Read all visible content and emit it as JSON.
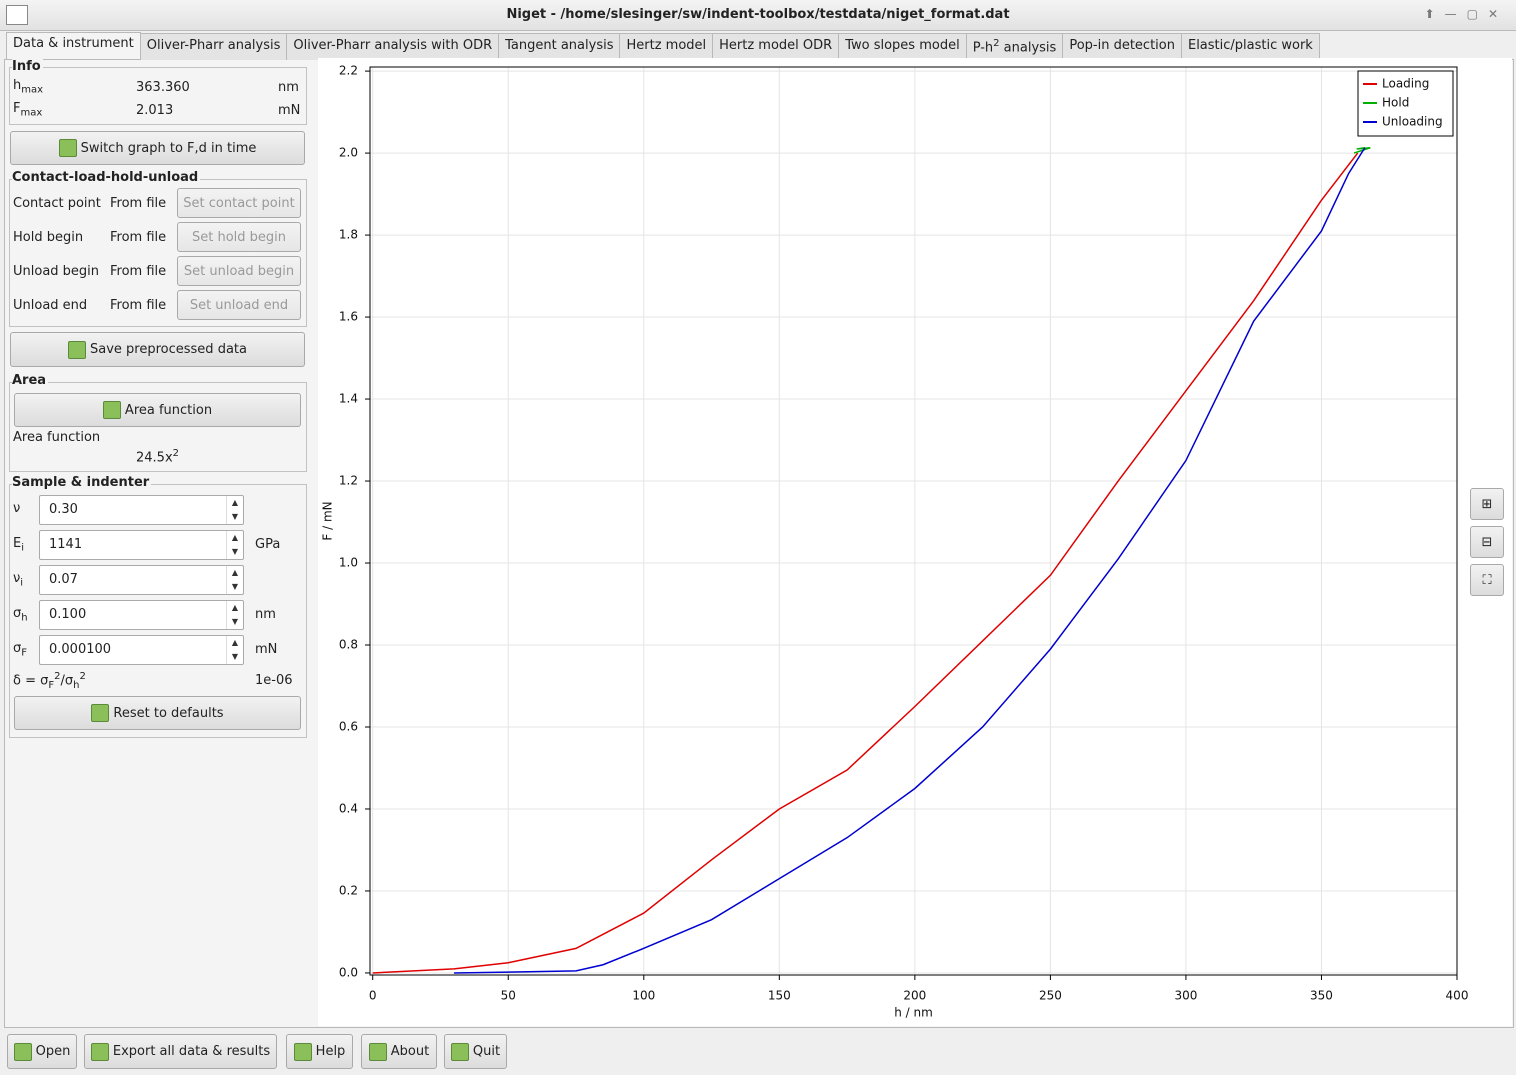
{
  "window": {
    "title": "Niget - /home/slesinger/sw/indent-toolbox/testdata/niget_format.dat"
  },
  "tabs": [
    {
      "label": "Data & instrument"
    },
    {
      "label": "Oliver-Pharr analysis"
    },
    {
      "label": "Oliver-Pharr analysis with ODR"
    },
    {
      "label": "Tangent analysis"
    },
    {
      "label": "Hertz model"
    },
    {
      "label": "Hertz model ODR"
    },
    {
      "label": "Two slopes model"
    },
    {
      "label": "P-h",
      "sup": "2",
      "label_end": " analysis"
    },
    {
      "label": "Pop-in detection"
    },
    {
      "label": "Elastic/plastic work"
    }
  ],
  "info": {
    "title": "Info",
    "rows": [
      {
        "symbol": "h",
        "sub": "max",
        "value": "363.360",
        "unit": "nm"
      },
      {
        "symbol": "F",
        "sub": "max",
        "value": "2.013",
        "unit": "mN"
      }
    ]
  },
  "switch_button": "Switch graph to F,d in time",
  "contact": {
    "title": "Contact-load-hold-unload",
    "rows": [
      {
        "label": "Contact point",
        "source": "From file",
        "button": "Set contact point"
      },
      {
        "label": "Hold begin",
        "source": "From file",
        "button": "Set hold begin"
      },
      {
        "label": "Unload begin",
        "source": "From file",
        "button": "Set unload begin"
      },
      {
        "label": "Unload end",
        "source": "From file",
        "button": "Set unload end"
      }
    ]
  },
  "save_button": "Save preprocessed data",
  "area": {
    "title": "Area",
    "button": "Area function",
    "label": "Area function",
    "formula": "24.5x",
    "formula_sup": "2"
  },
  "sample": {
    "title": "Sample & indenter",
    "fields": [
      {
        "symbol": "ν",
        "value": "0.30"
      },
      {
        "symbol": "E",
        "sub": "i",
        "value": "1141",
        "unit": "GPa"
      },
      {
        "symbol": "ν",
        "sub": "i",
        "value": "0.07"
      },
      {
        "symbol": "σ",
        "sub": "h",
        "value": "0.100",
        "unit": "nm"
      },
      {
        "symbol": "σ",
        "sub": "F",
        "value": "0.000100",
        "unit": "mN"
      }
    ],
    "delta": {
      "parts": [
        "δ = σ",
        "F",
        "2",
        "/σ",
        "h",
        "2"
      ],
      "value": "1e-06"
    }
  },
  "reset_button": "Reset to defaults",
  "bottom_buttons": [
    "Open",
    "Export all data & results",
    "Help",
    "About",
    "Quit"
  ],
  "chart_data": {
    "type": "line",
    "xlabel": "h / nm",
    "ylabel": "F / mN",
    "xlim": [
      -1,
      400
    ],
    "ylim": [
      -0.005,
      2.21
    ],
    "xticks": [
      0,
      50,
      100,
      150,
      200,
      250,
      300,
      350,
      400
    ],
    "yticks": [
      {
        "value": 0,
        "label": "0.0"
      },
      {
        "value": 0.2,
        "label": "0.2"
      },
      {
        "value": 0.4,
        "label": "0.4"
      },
      {
        "value": 0.6,
        "label": "0.6"
      },
      {
        "value": 0.8,
        "label": "0.8"
      },
      {
        "value": 1.0,
        "label": "1.0"
      },
      {
        "value": 1.2,
        "label": "1.2"
      },
      {
        "value": 1.4,
        "label": "1.4"
      },
      {
        "value": 1.6,
        "label": "1.6"
      },
      {
        "value": 1.8,
        "label": "1.8"
      },
      {
        "value": 2.0,
        "label": "2.0"
      },
      {
        "value": 2.2,
        "label": "2.2"
      }
    ],
    "grid": true,
    "legend": "top-right",
    "series": [
      {
        "name": "Loading",
        "color": "#e00000",
        "x": [
          0,
          30,
          50,
          75,
          100,
          125,
          150,
          175,
          200,
          225,
          250,
          275,
          300,
          325,
          350,
          363.36
        ],
        "values": [
          0,
          0.01,
          0.025,
          0.06,
          0.146,
          0.276,
          0.4,
          0.495,
          0.65,
          0.81,
          0.97,
          1.2,
          1.42,
          1.64,
          1.885,
          2.0
        ]
      },
      {
        "name": "Hold",
        "color": "#00b000",
        "x": [
          362,
          368,
          363,
          366
        ],
        "values": [
          2.0,
          2.013,
          2.01,
          2.013
        ]
      },
      {
        "name": "Unloading",
        "color": "#0000d0",
        "x": [
          366,
          360,
          350,
          325,
          300,
          275,
          250,
          225,
          200,
          175,
          150,
          125,
          100,
          85,
          75,
          50,
          30
        ],
        "values": [
          2.013,
          1.95,
          1.81,
          1.59,
          1.25,
          1.01,
          0.79,
          0.6,
          0.45,
          0.33,
          0.23,
          0.13,
          0.06,
          0.02,
          0.005,
          0.002,
          0
        ]
      }
    ]
  }
}
